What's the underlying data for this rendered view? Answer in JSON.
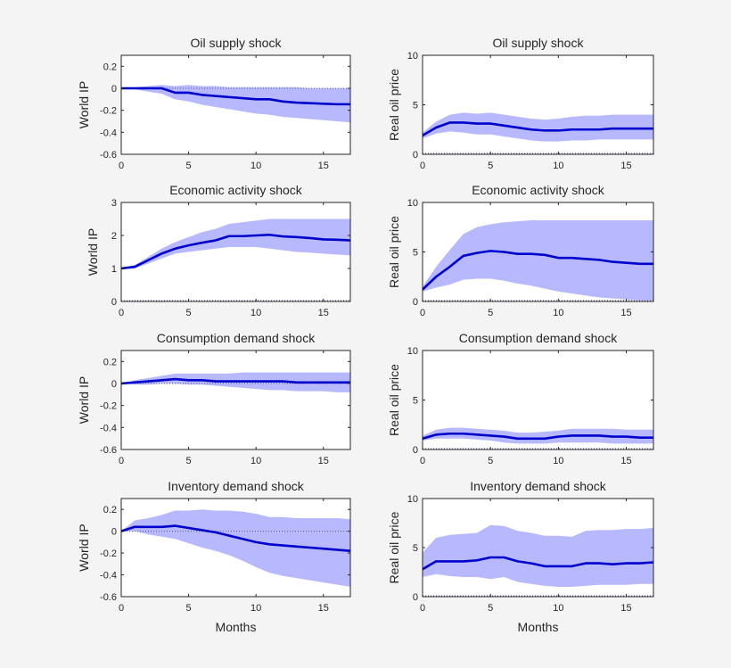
{
  "chart_data": [
    {
      "type": "line",
      "title": "Oil supply shock",
      "ylabel": "World IP",
      "xlabel": "",
      "xlim": [
        0,
        17
      ],
      "ylim": [
        -0.6,
        0.3
      ],
      "yticks": [
        0.2,
        0,
        -0.2,
        -0.4,
        -0.6
      ],
      "xticks": [
        0,
        5,
        10,
        15
      ],
      "x": [
        0,
        1,
        2,
        3,
        4,
        5,
        6,
        7,
        8,
        9,
        10,
        11,
        12,
        13,
        14,
        15,
        16,
        17
      ],
      "series": [
        {
          "values": [
            0,
            0,
            0,
            0,
            -0.04,
            -0.04,
            -0.06,
            -0.07,
            -0.08,
            -0.09,
            -0.1,
            -0.1,
            -0.12,
            -0.13,
            -0.135,
            -0.14,
            -0.145,
            -0.145
          ]
        }
      ],
      "band_upper": [
        0,
        0.01,
        0.02,
        0.03,
        0.02,
        0.03,
        0.02,
        0.02,
        0.01,
        0.01,
        0.01,
        0.01,
        0.01,
        0.01,
        0,
        0,
        0,
        0
      ],
      "band_lower": [
        0,
        -0.01,
        -0.03,
        -0.05,
        -0.1,
        -0.12,
        -0.15,
        -0.17,
        -0.19,
        -0.21,
        -0.23,
        -0.24,
        -0.26,
        -0.27,
        -0.28,
        -0.29,
        -0.3,
        -0.31
      ]
    },
    {
      "type": "line",
      "title": "Oil supply shock",
      "ylabel": "Real oil price",
      "xlabel": "",
      "xlim": [
        0,
        17
      ],
      "ylim": [
        0,
        10
      ],
      "yticks": [
        0,
        5,
        10
      ],
      "xticks": [
        0,
        5,
        10,
        15
      ],
      "x": [
        0,
        1,
        2,
        3,
        4,
        5,
        6,
        7,
        8,
        9,
        10,
        11,
        12,
        13,
        14,
        15,
        16,
        17
      ],
      "series": [
        {
          "values": [
            1.9,
            2.7,
            3.2,
            3.2,
            3.1,
            3.1,
            2.9,
            2.7,
            2.5,
            2.4,
            2.4,
            2.5,
            2.5,
            2.5,
            2.6,
            2.6,
            2.6,
            2.6
          ]
        }
      ],
      "band_upper": [
        2.2,
        3.3,
        4.0,
        4.2,
        4.1,
        4.2,
        4.0,
        3.8,
        3.6,
        3.5,
        3.6,
        3.8,
        3.9,
        3.9,
        4.0,
        4.0,
        4.0,
        4.0
      ],
      "band_lower": [
        1.6,
        2.1,
        2.3,
        2.2,
        2.0,
        2.0,
        1.8,
        1.6,
        1.4,
        1.3,
        1.3,
        1.4,
        1.4,
        1.5,
        1.5,
        1.5,
        1.5,
        1.5
      ]
    },
    {
      "type": "line",
      "title": "Economic activity shock",
      "ylabel": "World IP",
      "xlabel": "",
      "xlim": [
        0,
        17
      ],
      "ylim": [
        0,
        3
      ],
      "yticks": [
        0,
        1,
        2,
        3
      ],
      "xticks": [
        0,
        5,
        10,
        15
      ],
      "x": [
        0,
        1,
        2,
        3,
        4,
        5,
        6,
        7,
        8,
        9,
        10,
        11,
        12,
        13,
        14,
        15,
        16,
        17
      ],
      "series": [
        {
          "values": [
            1.0,
            1.05,
            1.25,
            1.45,
            1.6,
            1.7,
            1.78,
            1.85,
            1.98,
            1.98,
            2.0,
            2.02,
            1.97,
            1.95,
            1.92,
            1.88,
            1.87,
            1.85
          ]
        }
      ],
      "band_upper": [
        1.02,
        1.1,
        1.35,
        1.6,
        1.8,
        1.95,
        2.1,
        2.2,
        2.35,
        2.4,
        2.45,
        2.5,
        2.5,
        2.5,
        2.5,
        2.5,
        2.5,
        2.5
      ],
      "band_lower": [
        0.98,
        1.0,
        1.15,
        1.3,
        1.45,
        1.5,
        1.55,
        1.6,
        1.65,
        1.65,
        1.65,
        1.6,
        1.55,
        1.5,
        1.48,
        1.45,
        1.42,
        1.4
      ]
    },
    {
      "type": "line",
      "title": "Economic activity shock",
      "ylabel": "Real oil price",
      "xlabel": "",
      "xlim": [
        0,
        17
      ],
      "ylim": [
        0,
        10
      ],
      "yticks": [
        0,
        5,
        10
      ],
      "xticks": [
        0,
        5,
        10,
        15
      ],
      "x": [
        0,
        1,
        2,
        3,
        4,
        5,
        6,
        7,
        8,
        9,
        10,
        11,
        12,
        13,
        14,
        15,
        16,
        17
      ],
      "series": [
        {
          "values": [
            1.2,
            2.5,
            3.5,
            4.6,
            4.9,
            5.1,
            5.0,
            4.8,
            4.8,
            4.7,
            4.4,
            4.4,
            4.3,
            4.2,
            4.0,
            3.9,
            3.8,
            3.8
          ]
        }
      ],
      "band_upper": [
        1.5,
        3.5,
        5.2,
        6.8,
        7.5,
        7.8,
        8.0,
        8.1,
        8.2,
        8.2,
        8.2,
        8.2,
        8.2,
        8.2,
        8.2,
        8.2,
        8.2,
        8.2
      ],
      "band_lower": [
        1.0,
        1.4,
        1.7,
        2.2,
        2.3,
        2.3,
        2.1,
        1.8,
        1.6,
        1.3,
        1.0,
        0.8,
        0.6,
        0.4,
        0.3,
        0.2,
        0.1,
        0.1
      ]
    },
    {
      "type": "line",
      "title": "Consumption demand shock",
      "ylabel": "World IP",
      "xlabel": "",
      "xlim": [
        0,
        17
      ],
      "ylim": [
        -0.6,
        0.3
      ],
      "yticks": [
        0.2,
        0,
        -0.2,
        -0.4,
        -0.6
      ],
      "xticks": [
        0,
        5,
        10,
        15
      ],
      "x": [
        0,
        1,
        2,
        3,
        4,
        5,
        6,
        7,
        8,
        9,
        10,
        11,
        12,
        13,
        14,
        15,
        16,
        17
      ],
      "series": [
        {
          "values": [
            0,
            0.01,
            0.02,
            0.03,
            0.04,
            0.03,
            0.03,
            0.02,
            0.02,
            0.02,
            0.02,
            0.02,
            0.02,
            0.01,
            0.01,
            0.01,
            0.01,
            0.01
          ]
        }
      ],
      "band_upper": [
        0,
        0.03,
        0.05,
        0.07,
        0.09,
        0.09,
        0.09,
        0.09,
        0.09,
        0.1,
        0.1,
        0.1,
        0.1,
        0.1,
        0.1,
        0.1,
        0.1,
        0.1
      ],
      "band_lower": [
        0,
        -0.01,
        -0.01,
        0,
        0,
        -0.01,
        -0.01,
        -0.02,
        -0.03,
        -0.04,
        -0.05,
        -0.06,
        -0.06,
        -0.07,
        -0.07,
        -0.07,
        -0.08,
        -0.08
      ]
    },
    {
      "type": "line",
      "title": "Consumption demand shock",
      "ylabel": "Real oil price",
      "xlabel": "",
      "xlim": [
        0,
        17
      ],
      "ylim": [
        0,
        10
      ],
      "yticks": [
        0,
        5,
        10
      ],
      "xticks": [
        0,
        5,
        10,
        15
      ],
      "x": [
        0,
        1,
        2,
        3,
        4,
        5,
        6,
        7,
        8,
        9,
        10,
        11,
        12,
        13,
        14,
        15,
        16,
        17
      ],
      "series": [
        {
          "values": [
            1.1,
            1.5,
            1.6,
            1.6,
            1.5,
            1.4,
            1.3,
            1.1,
            1.1,
            1.1,
            1.3,
            1.4,
            1.4,
            1.4,
            1.3,
            1.3,
            1.2,
            1.2
          ]
        }
      ],
      "band_upper": [
        1.4,
        2.0,
        2.2,
        2.2,
        2.1,
        2.0,
        1.9,
        1.7,
        1.7,
        1.8,
        1.9,
        2.1,
        2.1,
        2.1,
        2.1,
        2.0,
        2.0,
        2.0
      ],
      "band_lower": [
        0.9,
        1.1,
        1.1,
        1.1,
        1.0,
        0.9,
        0.7,
        0.6,
        0.6,
        0.6,
        0.7,
        0.7,
        0.7,
        0.7,
        0.6,
        0.6,
        0.6,
        0.6
      ]
    },
    {
      "type": "line",
      "title": "Inventory demand shock",
      "ylabel": "World IP",
      "xlabel": "Months",
      "xlim": [
        0,
        17
      ],
      "ylim": [
        -0.6,
        0.3
      ],
      "yticks": [
        0.2,
        0,
        -0.2,
        -0.4,
        -0.6
      ],
      "xticks": [
        0,
        5,
        10,
        15
      ],
      "x": [
        0,
        1,
        2,
        3,
        4,
        5,
        6,
        7,
        8,
        9,
        10,
        11,
        12,
        13,
        14,
        15,
        16,
        17
      ],
      "series": [
        {
          "values": [
            0,
            0.04,
            0.04,
            0.04,
            0.05,
            0.03,
            0.01,
            -0.01,
            -0.04,
            -0.07,
            -0.1,
            -0.12,
            -0.13,
            -0.14,
            -0.15,
            -0.16,
            -0.17,
            -0.18
          ]
        }
      ],
      "band_upper": [
        0,
        0.1,
        0.12,
        0.15,
        0.19,
        0.19,
        0.2,
        0.19,
        0.19,
        0.18,
        0.16,
        0.13,
        0.13,
        0.12,
        0.12,
        0.12,
        0.12,
        0.11
      ],
      "band_lower": [
        0,
        0,
        -0.03,
        -0.05,
        -0.07,
        -0.11,
        -0.15,
        -0.18,
        -0.22,
        -0.27,
        -0.33,
        -0.38,
        -0.41,
        -0.43,
        -0.45,
        -0.47,
        -0.49,
        -0.51
      ]
    },
    {
      "type": "line",
      "title": "Inventory demand shock",
      "ylabel": "Real oil price",
      "xlabel": "Months",
      "xlim": [
        0,
        17
      ],
      "ylim": [
        0,
        10
      ],
      "yticks": [
        0,
        5,
        10
      ],
      "xticks": [
        0,
        5,
        10,
        15
      ],
      "x": [
        0,
        1,
        2,
        3,
        4,
        5,
        6,
        7,
        8,
        9,
        10,
        11,
        12,
        13,
        14,
        15,
        16,
        17
      ],
      "series": [
        {
          "values": [
            2.8,
            3.6,
            3.6,
            3.6,
            3.7,
            4.0,
            4.0,
            3.6,
            3.4,
            3.1,
            3.1,
            3.1,
            3.4,
            3.4,
            3.3,
            3.4,
            3.4,
            3.5
          ]
        }
      ],
      "band_upper": [
        4.5,
        6.0,
        6.3,
        6.4,
        6.5,
        7.3,
        7.2,
        6.7,
        6.5,
        6.2,
        6.2,
        6.1,
        6.7,
        6.8,
        6.8,
        6.9,
        6.9,
        7.0
      ],
      "band_lower": [
        2.0,
        2.3,
        2.1,
        2.0,
        2.0,
        1.8,
        2.0,
        1.5,
        1.3,
        1.1,
        1.0,
        1.0,
        1.1,
        1.2,
        1.2,
        1.2,
        1.3,
        1.3
      ]
    }
  ],
  "colors": {
    "line": "#0000cc",
    "band": "#b8b8ff",
    "zero_line": "#5a5a8a",
    "background": "#f4f4f4"
  }
}
